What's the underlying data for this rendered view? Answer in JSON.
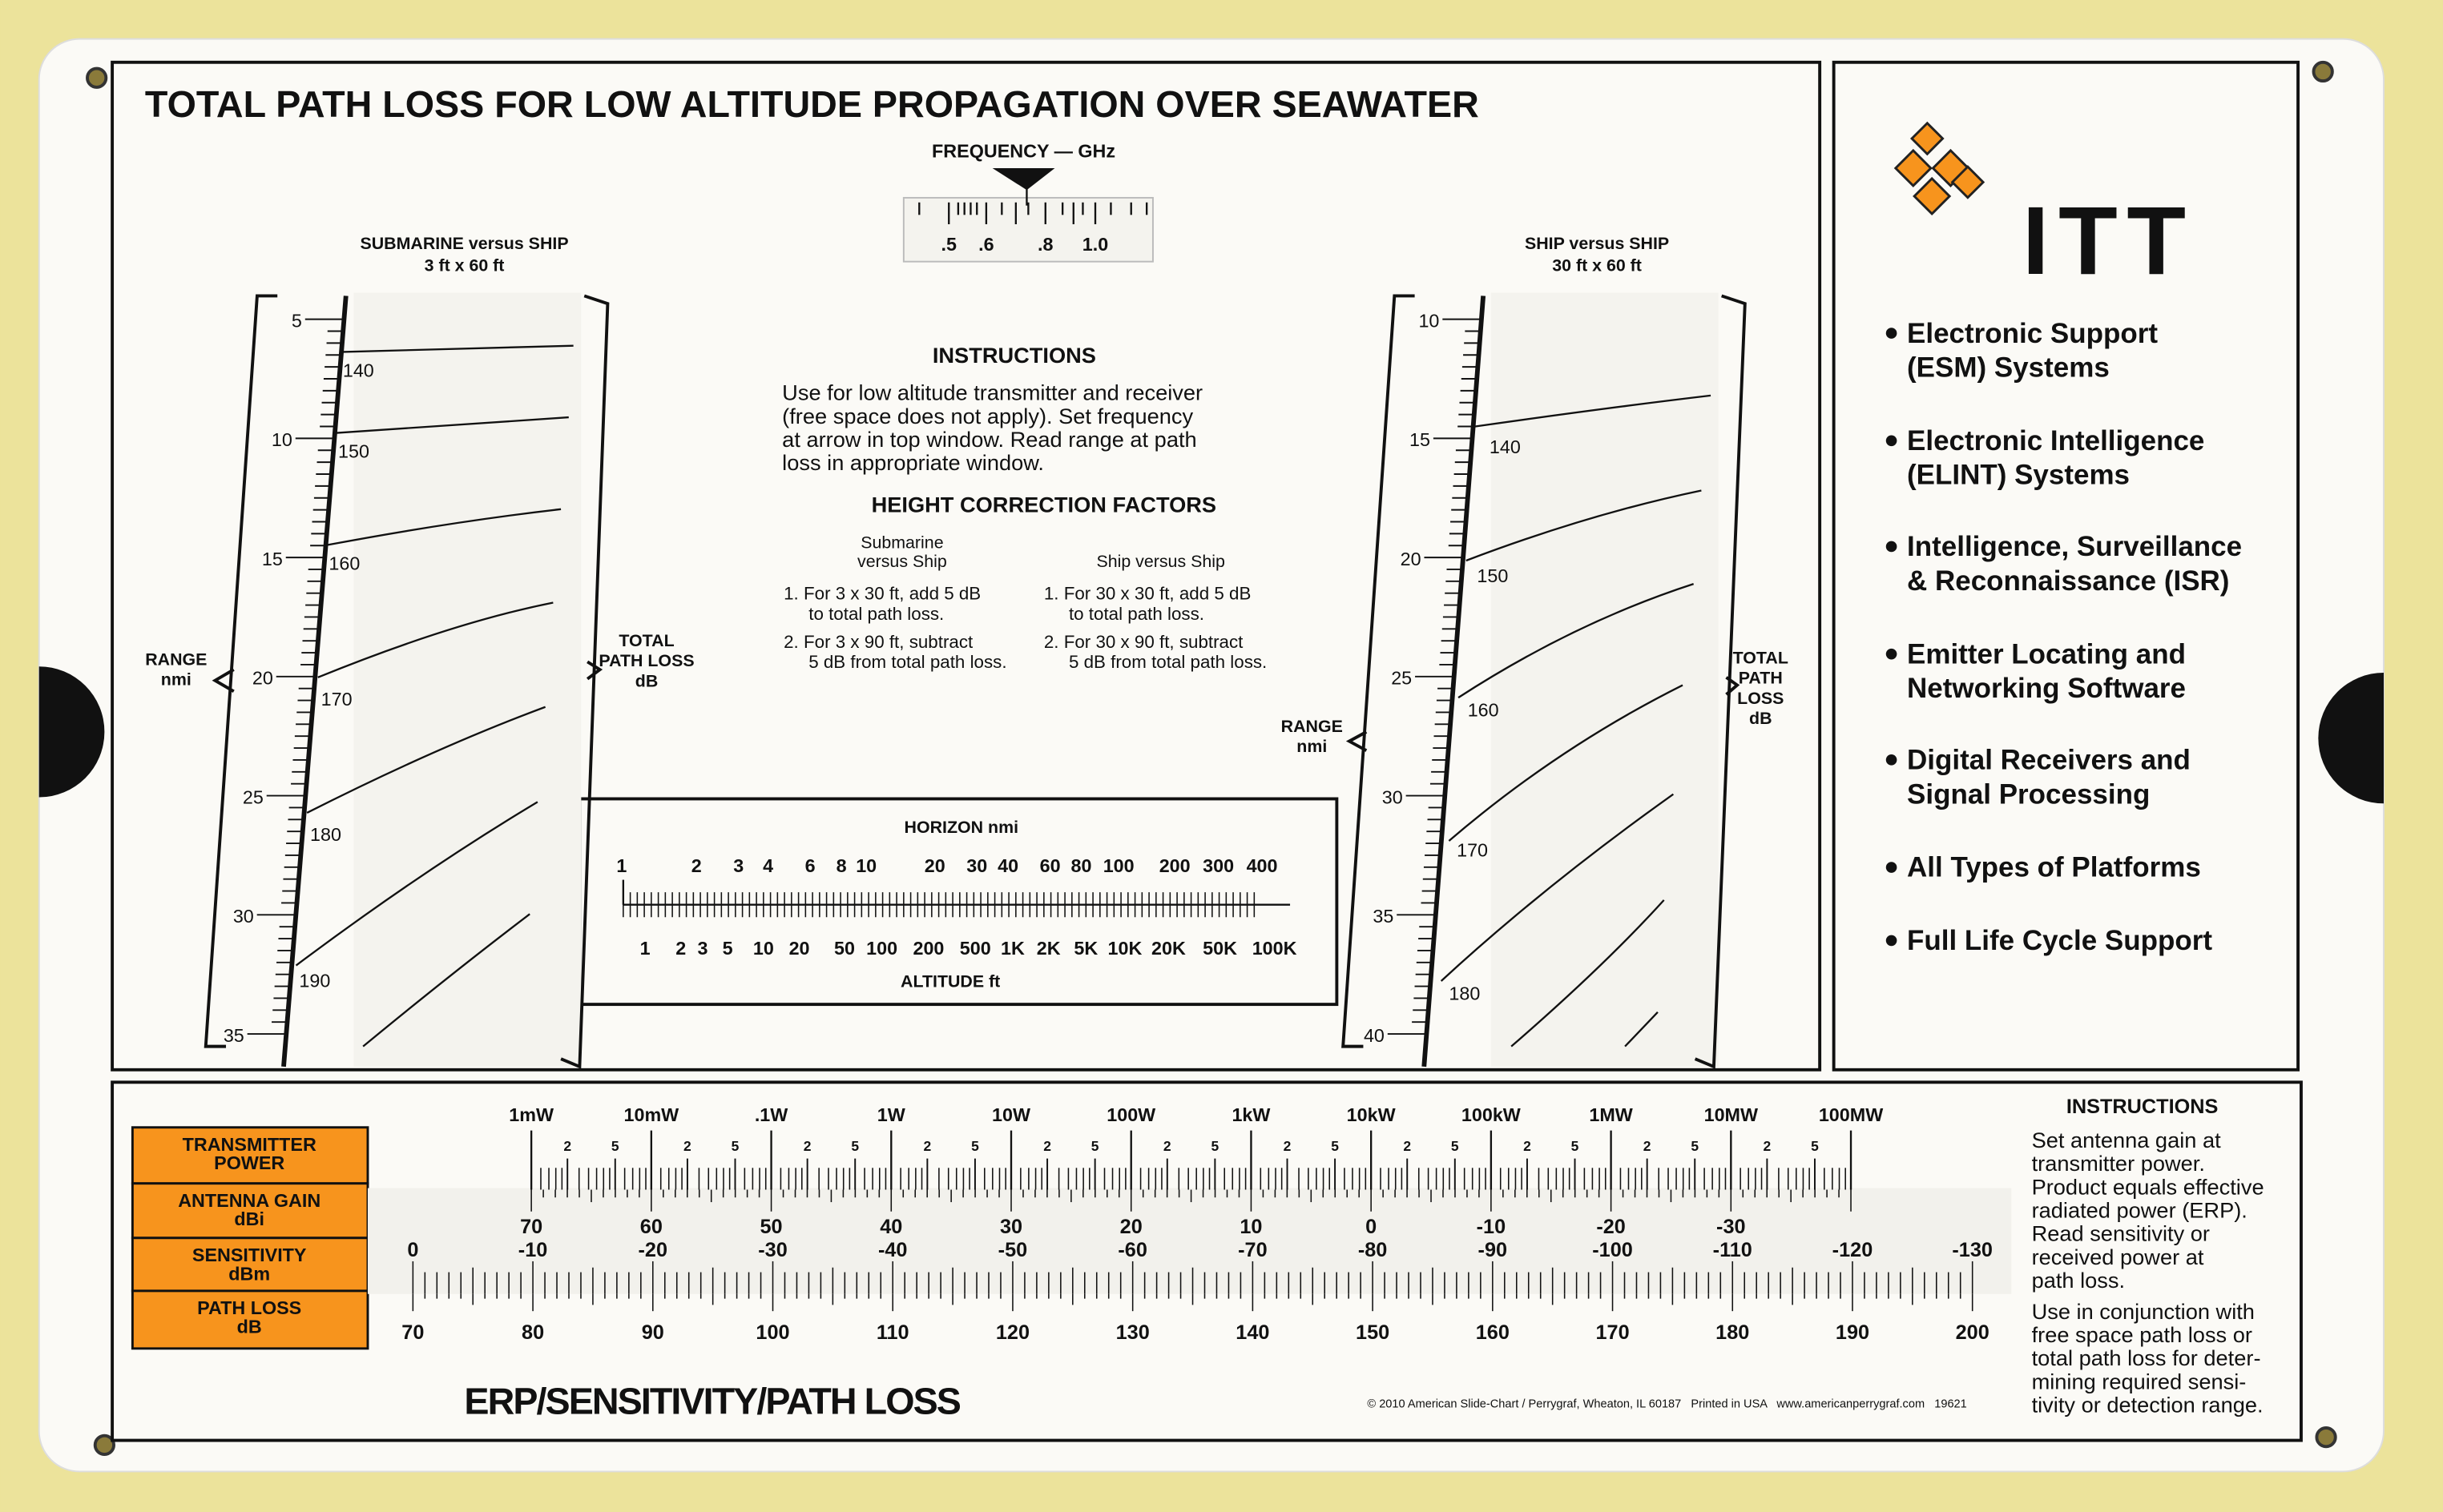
{
  "colors": {
    "background": "#ECE39B",
    "card": "#FBFAF6",
    "ink": "#111111",
    "orange": "#F7941D",
    "logo_orange": "#F7941D"
  },
  "title": "TOTAL PATH LOSS FOR LOW ALTITUDE PROPAGATION OVER SEAWATER",
  "frequency": {
    "label": "FREQUENCY — GHz",
    "ticks": [
      ".5",
      ".6",
      ".8",
      "1.0"
    ],
    "pointer_icon": "triangle-down-icon"
  },
  "left_scale": {
    "title": "SUBMARINE versus SHIP",
    "subtitle": "3 ft x 60 ft",
    "range_label": [
      "RANGE",
      "nmi"
    ],
    "loss_label": [
      "TOTAL",
      "PATH LOSS",
      "dB"
    ],
    "range_values": [
      "5",
      "10",
      "15",
      "20",
      "25",
      "30",
      "35"
    ],
    "loss_values": [
      "140",
      "150",
      "160",
      "170",
      "180",
      "190"
    ]
  },
  "right_scale": {
    "title": "SHIP versus SHIP",
    "subtitle": "30 ft x 60 ft",
    "range_label": [
      "RANGE",
      "nmi"
    ],
    "loss_label": [
      "TOTAL",
      "PATH",
      "LOSS",
      "dB"
    ],
    "range_values": [
      "10",
      "15",
      "20",
      "25",
      "30",
      "35",
      "40"
    ],
    "loss_values": [
      "140",
      "150",
      "160",
      "170",
      "180"
    ]
  },
  "instructions": {
    "heading": "INSTRUCTIONS",
    "lines": [
      "Use for low altitude transmitter and receiver",
      "(free space does not apply). Set frequency",
      "at arrow in top window. Read range at path",
      "loss in appropriate window."
    ],
    "hcf_heading": "HEIGHT CORRECTION FACTORS",
    "col1_head": [
      "Submarine",
      "versus Ship"
    ],
    "col1": [
      "1. For 3 x 30 ft, add 5 dB",
      "to total path loss.",
      "2. For 3 x 90 ft, subtract",
      "5 dB from total path loss."
    ],
    "col2_head": "Ship versus Ship",
    "col2": [
      "1. For 30 x 30 ft, add 5 dB",
      "to total path loss.",
      "2. For 30 x 90 ft, subtract",
      "5 dB from total path loss."
    ]
  },
  "horizon": {
    "label": "HORIZON nmi",
    "nmi": [
      "1",
      "2",
      "3",
      "4",
      "6",
      "8",
      "10",
      "20",
      "30",
      "40",
      "60",
      "80",
      "100",
      "200",
      "300",
      "400"
    ],
    "altitude": [
      "1",
      "2",
      "3",
      "5",
      "10",
      "20",
      "50",
      "100",
      "200",
      "500",
      "1K",
      "2K",
      "5K",
      "10K",
      "20K",
      "50K",
      "100K"
    ],
    "altitude_label": "ALTITUDE ft"
  },
  "brand": {
    "logo_text": "ITT",
    "bullets": [
      [
        "Electronic Support",
        "(ESM) Systems"
      ],
      [
        "Electronic Intelligence",
        "(ELINT) Systems"
      ],
      [
        "Intelligence, Surveillance",
        "& Reconnaissance (ISR)"
      ],
      [
        "Emitter Locating and",
        "Networking Software"
      ],
      [
        "Digital Receivers and",
        "Signal Processing"
      ],
      [
        "All Types of Platforms"
      ],
      [
        "Full Life Cycle Support"
      ]
    ]
  },
  "erp": {
    "row_labels": [
      [
        "TRANSMITTER",
        "POWER"
      ],
      [
        "ANTENNA GAIN",
        "dBi"
      ],
      [
        "SENSITIVITY",
        "dBm"
      ],
      [
        "PATH LOSS",
        "dB"
      ]
    ],
    "power": [
      "1mW",
      "10mW",
      ".1W",
      "1W",
      "10W",
      "100W",
      "1kW",
      "10kW",
      "100kW",
      "1MW",
      "10MW",
      "100MW"
    ],
    "power_sub": [
      "2",
      "5"
    ],
    "gain": [
      "70",
      "60",
      "50",
      "40",
      "30",
      "20",
      "10",
      "0",
      "-10",
      "-20",
      "-30"
    ],
    "sensitivity": [
      "0",
      "-10",
      "-20",
      "-30",
      "-40",
      "-50",
      "-60",
      "-70",
      "-80",
      "-90",
      "-100",
      "-110",
      "-120",
      "-130"
    ],
    "path_loss": [
      "70",
      "80",
      "90",
      "100",
      "110",
      "120",
      "130",
      "140",
      "150",
      "160",
      "170",
      "180",
      "190",
      "200"
    ],
    "title": "ERP/SENSITIVITY/PATH LOSS",
    "copyright": "© 2010 American Slide-Chart / Perrygraf, Wheaton, IL 60187   Printed in USA   www.americanperrygraf.com   19621",
    "instructions_heading": "INSTRUCTIONS",
    "instructions": [
      "Set antenna gain at",
      "transmitter power.",
      "Product equals effective",
      "radiated power (ERP).",
      "Read sensitivity or",
      "received power at",
      "path loss.",
      "Use in conjunction with",
      "free space path loss or",
      "total path loss for deter-",
      "mining required sensi-",
      "tivity or detection range."
    ]
  }
}
